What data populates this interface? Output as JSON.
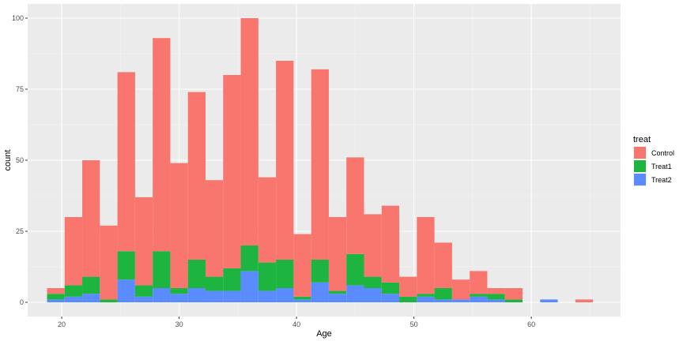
{
  "chart_data": {
    "type": "bar",
    "stacked": true,
    "bin_width": 1.5,
    "x": [
      19.5,
      21.0,
      22.5,
      24.0,
      25.5,
      27.0,
      28.5,
      30.0,
      31.5,
      33.0,
      34.5,
      36.0,
      37.5,
      39.0,
      40.5,
      42.0,
      43.5,
      45.0,
      46.5,
      48.0,
      49.5,
      51.0,
      52.5,
      54.0,
      55.5,
      57.0,
      58.5,
      60.0,
      61.5,
      63.0,
      64.5
    ],
    "series": [
      {
        "name": "Treat2",
        "values": [
          1,
          2,
          3,
          0,
          8,
          2,
          5,
          3,
          5,
          4,
          4,
          11,
          4,
          5,
          1,
          7,
          3,
          6,
          5,
          3,
          0,
          2,
          1,
          1,
          2,
          1,
          0,
          0,
          1,
          0,
          0
        ]
      },
      {
        "name": "Treat1",
        "values": [
          2,
          4,
          6,
          1,
          10,
          4,
          13,
          2,
          10,
          5,
          8,
          9,
          10,
          10,
          1,
          8,
          1,
          11,
          4,
          4,
          2,
          1,
          4,
          0,
          1,
          2,
          1,
          0,
          0,
          0,
          0
        ]
      },
      {
        "name": "Control",
        "values": [
          2,
          24,
          41,
          26,
          63,
          31,
          75,
          44,
          59,
          34,
          68,
          80,
          30,
          70,
          22,
          67,
          26,
          34,
          22,
          27,
          7,
          27,
          16,
          7,
          8,
          2,
          4,
          0,
          0,
          0,
          1
        ]
      }
    ],
    "colors": {
      "Control": "#F8766D",
      "Treat1": "#1DB43F",
      "Treat2": "#5B8CFF"
    },
    "legend_order": [
      "Control",
      "Treat1",
      "Treat2"
    ],
    "xlabel": "Age",
    "ylabel": "count",
    "xlim": [
      17.1,
      67.6
    ],
    "ylim": [
      -5,
      105
    ],
    "x_ticks": [
      20,
      30,
      40,
      50,
      60
    ],
    "y_ticks": [
      0,
      25,
      50,
      75,
      100
    ],
    "legend_title": "treat",
    "legend_position": "right",
    "grid": true,
    "panel_background": "#EBEBEB"
  }
}
